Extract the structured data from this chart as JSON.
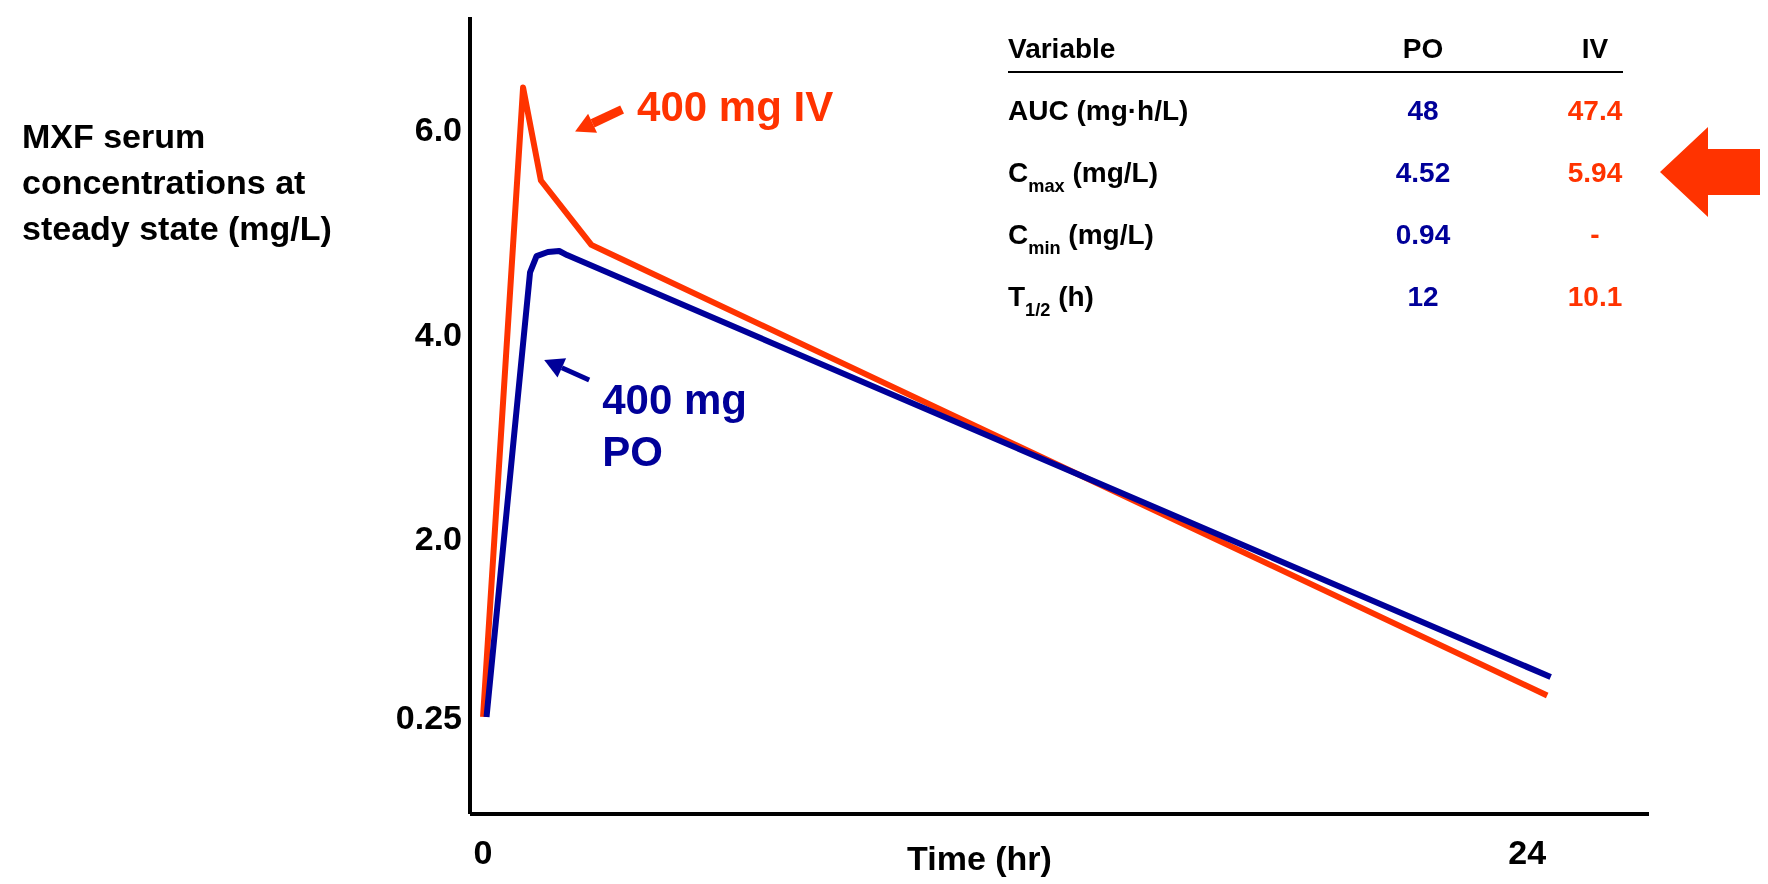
{
  "chart_data": {
    "type": "line",
    "ylabel": "MXF serum concentrations at steady state (mg/L)",
    "xlabel": "Time (hr)",
    "xlim": [
      -0.3,
      26.8
    ],
    "xticks": [
      0,
      24
    ],
    "ylim": [
      -0.7,
      7.1
    ],
    "yticks": [
      0.25,
      {
        "value": 2,
        "label": "2.0"
      },
      {
        "value": 4,
        "label": "4.0"
      },
      {
        "value": 6,
        "label": "6.0"
      }
    ],
    "grid": false,
    "legend": "top left",
    "marker": "none",
    "line_style": "solid",
    "series": [
      {
        "name": "400 mg IV",
        "color": "#ff3300",
        "x": [
          0,
          0.92,
          1.33,
          2.49,
          24.46
        ],
        "values": [
          0.25,
          6.41,
          5.5,
          4.87,
          0.46
        ]
      },
      {
        "name": "400 mg PO",
        "color": "#000099",
        "x": [
          0.08,
          1.08,
          1.23,
          1.49,
          1.75,
          1.93,
          24.54
        ],
        "values": [
          0.25,
          4.6,
          4.76,
          4.8,
          4.81,
          4.77,
          0.64
        ]
      }
    ],
    "annotations": [
      "Variable",
      "PO",
      "IV",
      "AUC (mg·h/L)",
      "48",
      "47.4",
      "C$_{max}$ (mg/L)",
      "4.52",
      "5.94",
      "C$_{min}$ (mg/L)",
      "0.94",
      "-",
      "T$_{1/2}$ (h)",
      "12",
      "10.1"
    ]
  }
}
